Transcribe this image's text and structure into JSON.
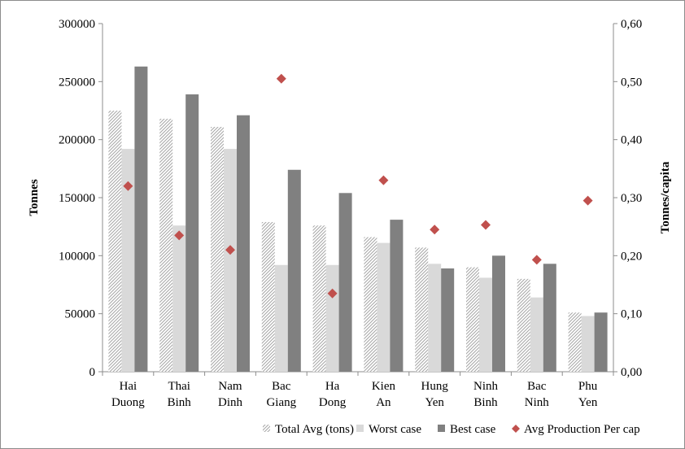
{
  "chart_data": {
    "type": "bar",
    "categories": [
      [
        "Hai",
        "Duong"
      ],
      [
        "Thai",
        "Binh"
      ],
      [
        "Nam",
        "Dinh"
      ],
      [
        "Bac",
        "Giang"
      ],
      [
        "Ha",
        "Dong"
      ],
      [
        "Kien",
        "An"
      ],
      [
        "Hung",
        "Yen"
      ],
      [
        "Ninh",
        "Binh"
      ],
      [
        "Bac",
        "Ninh"
      ],
      [
        "Phu",
        "Yen"
      ]
    ],
    "ylabel": "Tonnes",
    "y2label": "Tonnes/capita",
    "ylim": [
      0,
      300000
    ],
    "y2lim": [
      0,
      0.6
    ],
    "yticks": [
      "0",
      "50000",
      "100000",
      "150000",
      "200000",
      "250000",
      "300000"
    ],
    "y2ticks": [
      "0,00",
      "0,10",
      "0,20",
      "0,30",
      "0,40",
      "0,50",
      "0,60"
    ],
    "grid": false,
    "legend_position": "bottom",
    "series": [
      {
        "name": "Total Avg (tons)",
        "type": "bar",
        "axis": "left",
        "style": "hatched",
        "values": [
          225000,
          218000,
          211000,
          129000,
          126000,
          116000,
          107000,
          90000,
          80000,
          51000
        ]
      },
      {
        "name": "Worst case",
        "type": "bar",
        "axis": "left",
        "style": "light",
        "values": [
          192000,
          126000,
          192000,
          92000,
          92000,
          111000,
          93000,
          81000,
          64000,
          48000
        ]
      },
      {
        "name": "Best case",
        "type": "bar",
        "axis": "left",
        "style": "dark",
        "values": [
          263000,
          239000,
          221000,
          174000,
          154000,
          131000,
          89000,
          100000,
          93000,
          51000
        ]
      },
      {
        "name": "Avg Production Per cap",
        "type": "scatter",
        "axis": "right",
        "style": "diamond",
        "values": [
          0.32,
          0.235,
          0.21,
          0.505,
          0.135,
          0.33,
          0.245,
          0.253,
          0.193,
          0.295
        ]
      }
    ],
    "colors": {
      "hatch": "#a6a6a6",
      "light": "#d9d9d9",
      "dark": "#808080",
      "marker": "#c0504d",
      "axis": "#8c8c8c"
    }
  }
}
